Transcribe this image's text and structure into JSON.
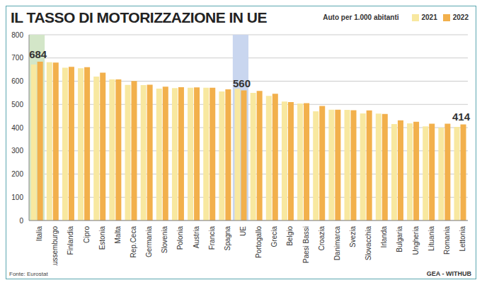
{
  "chart_data": {
    "type": "bar",
    "title": "IL TASSO DI MOTORIZZAZIONE IN UE",
    "subtitle": "Auto per 1.000 abitanti",
    "source": "Fonte: Eurostat",
    "credit": "GEA - WITHUB",
    "categories": [
      "Italia",
      "Lussemburgo",
      "Finlandia",
      "Cipro",
      "Estonia",
      "Malta",
      "Rep.Ceca",
      "Germania",
      "Slovenia",
      "Polonia",
      "Austria",
      "Francia",
      "Spagna",
      "UE",
      "Portogallo",
      "Grecia",
      "Belgio",
      "Paesi Bassi",
      "Croazia",
      "Danimarca",
      "Svezia",
      "Slovacchia",
      "Irlanda",
      "Bulgaria",
      "Ungheria",
      "Lituania",
      "Romania",
      "Lettonia"
    ],
    "series": [
      {
        "name": "2021",
        "color": "#f8e8a0",
        "values": [
          672,
          682,
          658,
          656,
          620,
          608,
          584,
          583,
          568,
          570,
          572,
          572,
          556,
          567,
          550,
          537,
          512,
          504,
          470,
          477,
          476,
          461,
          460,
          415,
          418,
          405,
          400,
          403
        ]
      },
      {
        "name": "2022",
        "color": "#f2b04c",
        "values": [
          684,
          680,
          662,
          660,
          637,
          608,
          601,
          585,
          576,
          574,
          573,
          572,
          565,
          560,
          558,
          546,
          510,
          505,
          493,
          477,
          475,
          474,
          459,
          431,
          425,
          417,
          417,
          414
        ]
      }
    ],
    "annotations": [
      {
        "category": "Italia",
        "text": "684",
        "highlight": "#d3e6c8"
      },
      {
        "category": "UE",
        "text": "560",
        "highlight": "#c9d6ef"
      },
      {
        "category": "Lettonia",
        "text": "414"
      }
    ],
    "ylim": [
      0,
      800
    ],
    "yticks": [
      0,
      100,
      200,
      300,
      400,
      500,
      600,
      700,
      800
    ],
    "grid": true,
    "legend": "top-right"
  }
}
